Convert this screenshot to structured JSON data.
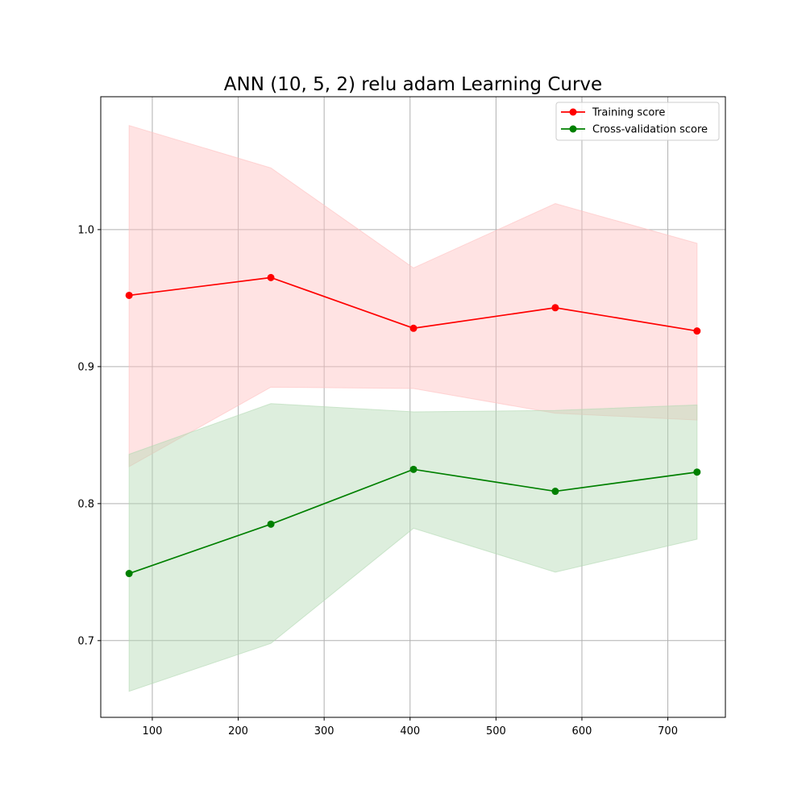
{
  "chart_data": {
    "type": "line",
    "title": "ANN (10, 5, 2) relu adam Learning Curve",
    "xlabel": "",
    "ylabel": "",
    "x": [
      73,
      238,
      404,
      569,
      734
    ],
    "xlim": [
      40,
      767
    ],
    "ylim": [
      0.644,
      1.097
    ],
    "xticks": [
      100,
      200,
      300,
      400,
      500,
      600,
      700
    ],
    "yticks": [
      0.7,
      0.8,
      0.9,
      1.0
    ],
    "grid": true,
    "legend_position": "top-right",
    "series": [
      {
        "name": "Training score",
        "color": "#ff0000",
        "band_color": "#ffc0c0",
        "values": [
          0.952,
          0.965,
          0.928,
          0.943,
          0.926
        ],
        "upper": [
          1.076,
          1.045,
          0.972,
          1.019,
          0.99
        ],
        "lower": [
          0.827,
          0.885,
          0.884,
          0.866,
          0.861
        ]
      },
      {
        "name": "Cross-validation score",
        "color": "#008000",
        "band_color": "#b3d9b3",
        "values": [
          0.749,
          0.785,
          0.825,
          0.809,
          0.823
        ],
        "upper": [
          0.836,
          0.873,
          0.867,
          0.868,
          0.872
        ],
        "lower": [
          0.663,
          0.698,
          0.782,
          0.75,
          0.774
        ]
      }
    ]
  }
}
